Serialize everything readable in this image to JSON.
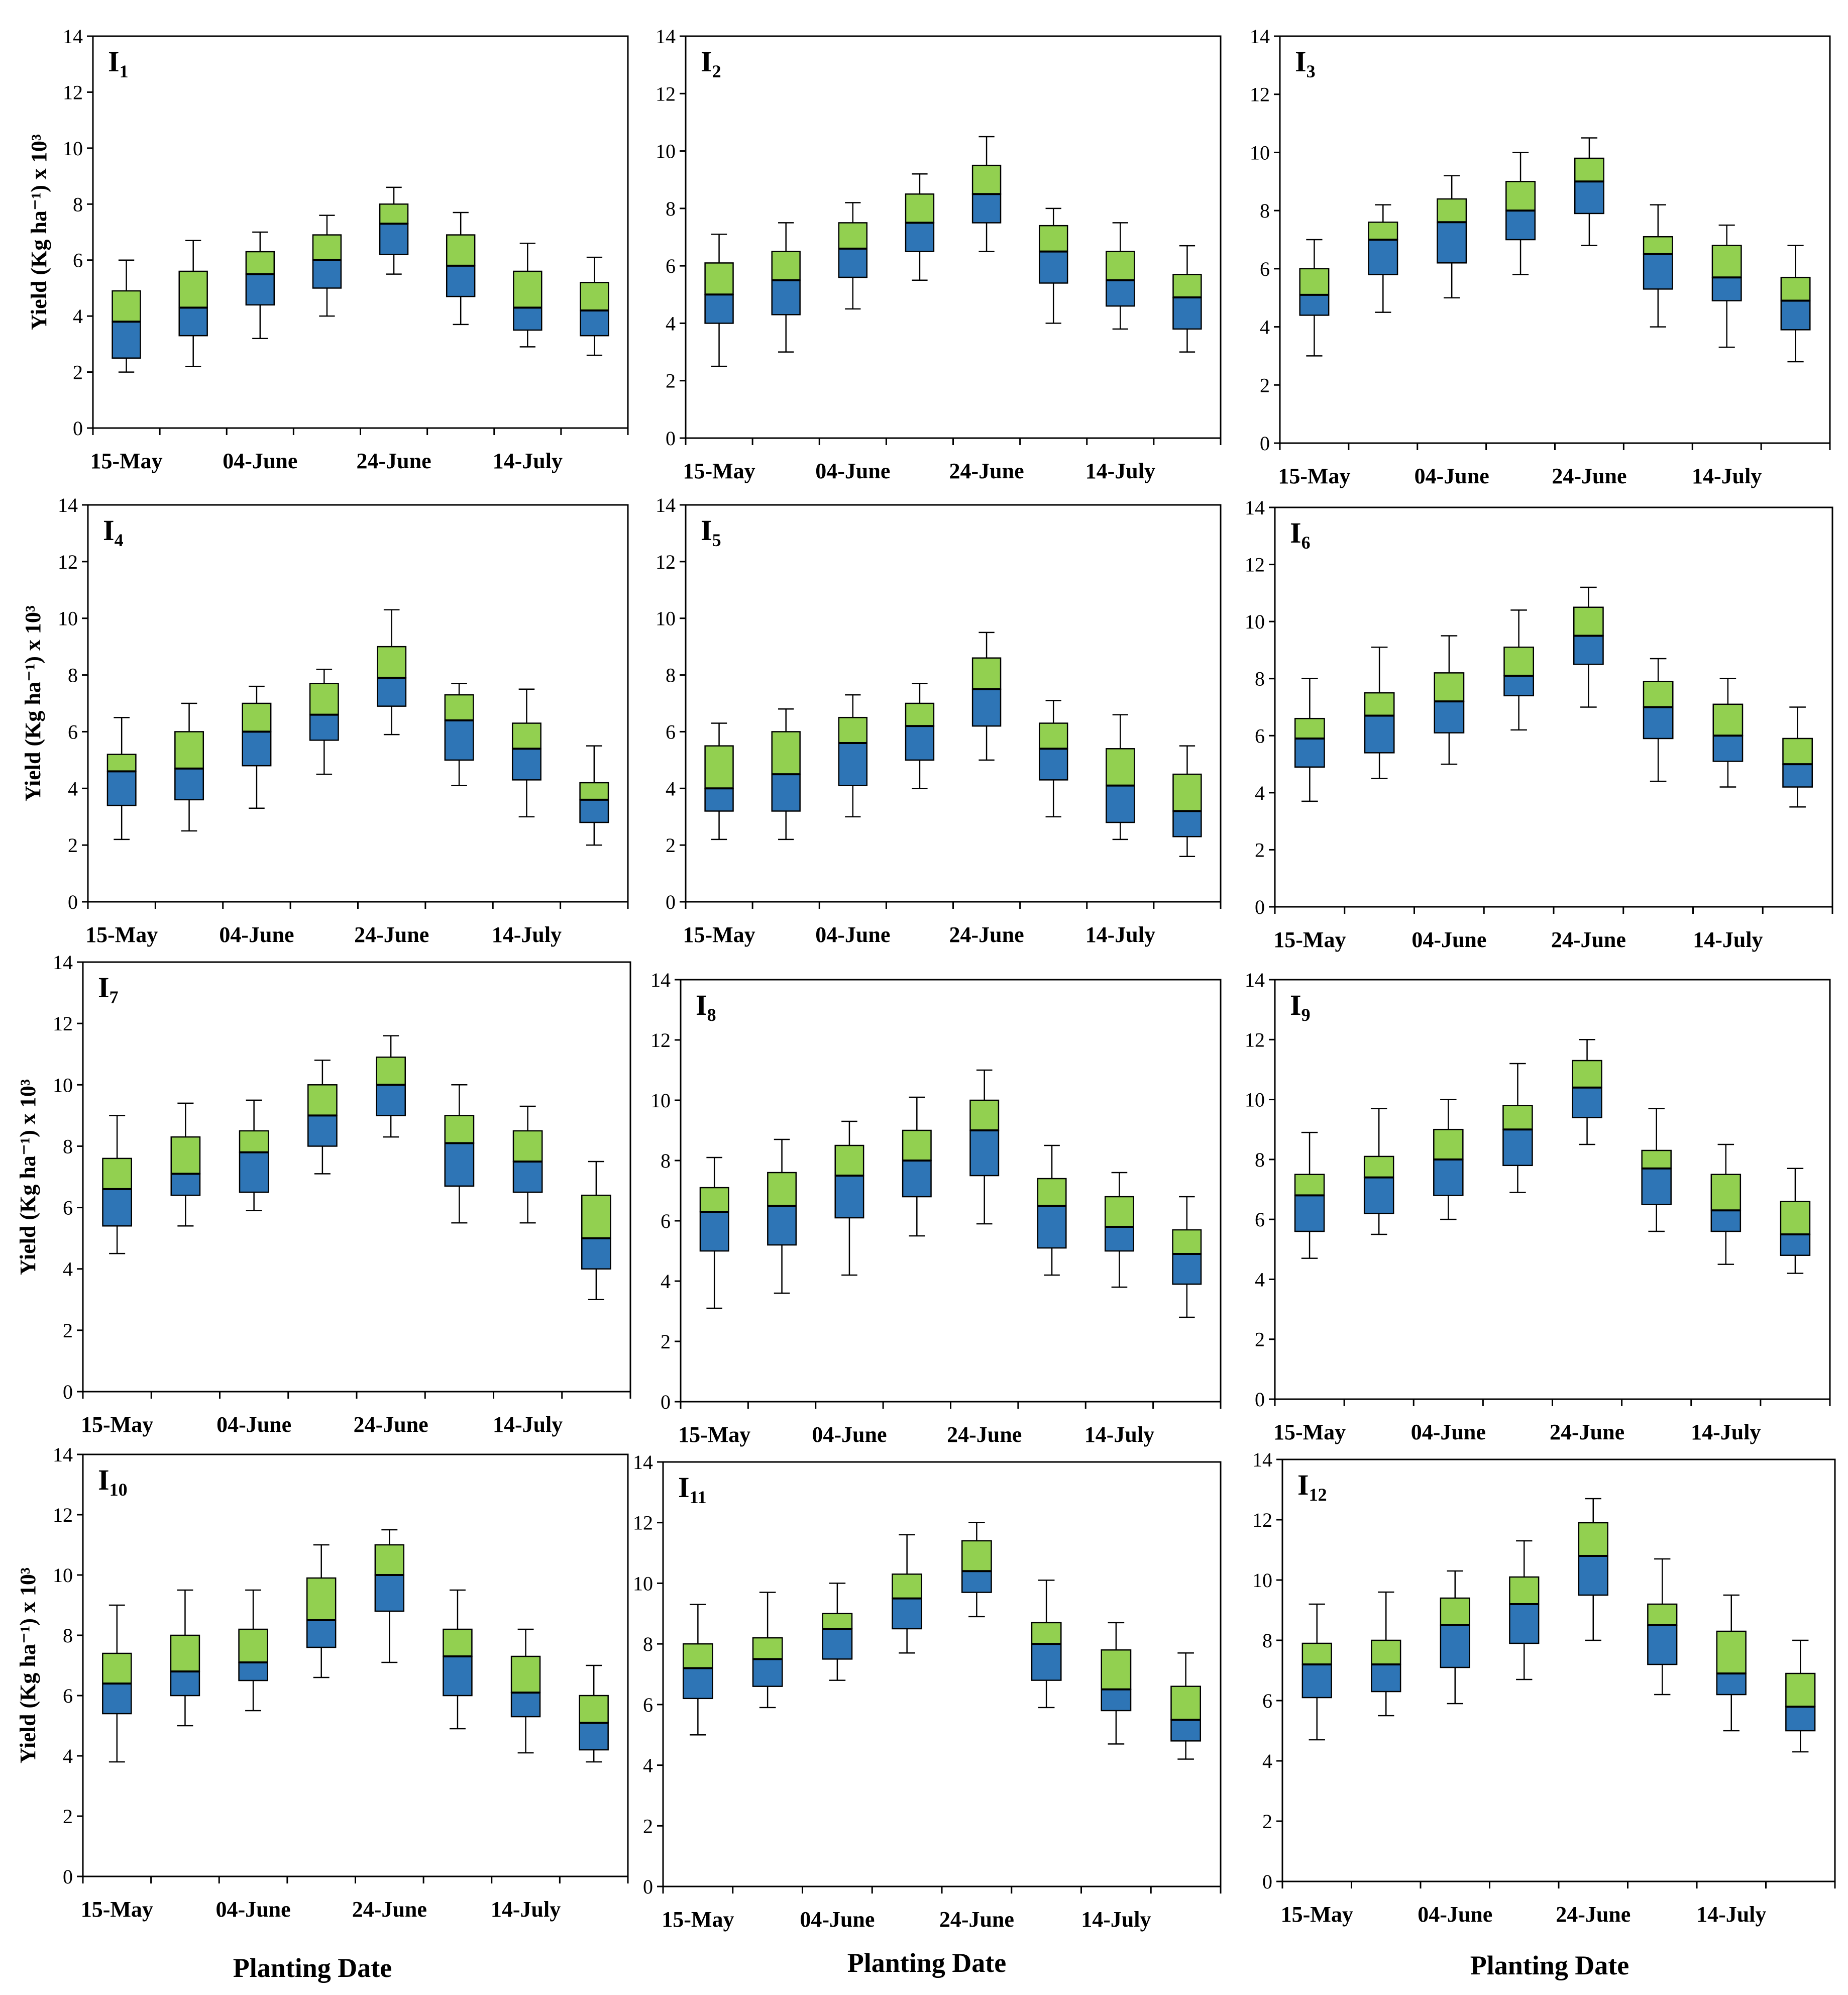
{
  "figure": {
    "y_axis_title": "Yield (Kg ha⁻¹) x 10³",
    "x_axis_title": "Planting Date",
    "colors": {
      "upper_box": "#92d050",
      "lower_box": "#2e75b6",
      "outline": "#000000",
      "whisker": "#000000"
    }
  },
  "chart_data": [
    {
      "type": "box",
      "title": "I",
      "subscript": "1",
      "categories": [
        "15-May",
        "",
        "04-June",
        "",
        "24-June",
        "",
        "14-July",
        ""
      ],
      "ylim": [
        0,
        14
      ],
      "yticks": [
        0,
        2,
        4,
        6,
        8,
        10,
        12,
        14
      ],
      "boxes": [
        {
          "min": 2.0,
          "q1": 2.5,
          "median": 3.8,
          "q3": 4.9,
          "max": 6.0
        },
        {
          "min": 2.2,
          "q1": 3.3,
          "median": 4.3,
          "q3": 5.6,
          "max": 6.7
        },
        {
          "min": 3.2,
          "q1": 4.4,
          "median": 5.5,
          "q3": 6.3,
          "max": 7.0
        },
        {
          "min": 4.0,
          "q1": 5.0,
          "median": 6.0,
          "q3": 6.9,
          "max": 7.6
        },
        {
          "min": 5.5,
          "q1": 6.2,
          "median": 7.3,
          "q3": 8.0,
          "max": 8.6
        },
        {
          "min": 3.7,
          "q1": 4.7,
          "median": 5.8,
          "q3": 6.9,
          "max": 7.7
        },
        {
          "min": 2.9,
          "q1": 3.5,
          "median": 4.3,
          "q3": 5.6,
          "max": 6.6
        },
        {
          "min": 2.6,
          "q1": 3.3,
          "median": 4.2,
          "q3": 5.2,
          "max": 6.1
        }
      ]
    },
    {
      "type": "box",
      "title": "I",
      "subscript": "2",
      "categories": [
        "15-May",
        "",
        "04-June",
        "",
        "24-June",
        "",
        "14-July",
        ""
      ],
      "ylim": [
        0,
        14
      ],
      "yticks": [
        0,
        2,
        4,
        6,
        8,
        10,
        12,
        14
      ],
      "boxes": [
        {
          "min": 2.5,
          "q1": 4.0,
          "median": 5.0,
          "q3": 6.1,
          "max": 7.1
        },
        {
          "min": 3.0,
          "q1": 4.3,
          "median": 5.5,
          "q3": 6.5,
          "max": 7.5
        },
        {
          "min": 4.5,
          "q1": 5.6,
          "median": 6.6,
          "q3": 7.5,
          "max": 8.2
        },
        {
          "min": 5.5,
          "q1": 6.5,
          "median": 7.5,
          "q3": 8.5,
          "max": 9.2
        },
        {
          "min": 6.5,
          "q1": 7.5,
          "median": 8.5,
          "q3": 9.5,
          "max": 10.5
        },
        {
          "min": 4.0,
          "q1": 5.4,
          "median": 6.5,
          "q3": 7.4,
          "max": 8.0
        },
        {
          "min": 3.8,
          "q1": 4.6,
          "median": 5.5,
          "q3": 6.5,
          "max": 7.5
        },
        {
          "min": 3.0,
          "q1": 3.8,
          "median": 4.9,
          "q3": 5.7,
          "max": 6.7
        }
      ]
    },
    {
      "type": "box",
      "title": "I",
      "subscript": "3",
      "categories": [
        "15-May",
        "",
        "04-June",
        "",
        "24-June",
        "",
        "14-July",
        ""
      ],
      "ylim": [
        0,
        14
      ],
      "yticks": [
        0,
        2,
        4,
        6,
        8,
        10,
        12,
        14
      ],
      "boxes": [
        {
          "min": 3.0,
          "q1": 4.4,
          "median": 5.1,
          "q3": 6.0,
          "max": 7.0
        },
        {
          "min": 4.5,
          "q1": 5.8,
          "median": 7.0,
          "q3": 7.6,
          "max": 8.2
        },
        {
          "min": 5.0,
          "q1": 6.2,
          "median": 7.6,
          "q3": 8.4,
          "max": 9.2
        },
        {
          "min": 5.8,
          "q1": 7.0,
          "median": 8.0,
          "q3": 9.0,
          "max": 10.0
        },
        {
          "min": 6.8,
          "q1": 7.9,
          "median": 9.0,
          "q3": 9.8,
          "max": 10.5
        },
        {
          "min": 4.0,
          "q1": 5.3,
          "median": 6.5,
          "q3": 7.1,
          "max": 8.2
        },
        {
          "min": 3.3,
          "q1": 4.9,
          "median": 5.7,
          "q3": 6.8,
          "max": 7.5
        },
        {
          "min": 2.8,
          "q1": 3.9,
          "median": 4.9,
          "q3": 5.7,
          "max": 6.8
        }
      ]
    },
    {
      "type": "box",
      "title": "I",
      "subscript": "4",
      "categories": [
        "15-May",
        "",
        "04-June",
        "",
        "24-June",
        "",
        "14-July",
        ""
      ],
      "ylim": [
        0,
        14
      ],
      "yticks": [
        0,
        2,
        4,
        6,
        8,
        10,
        12,
        14
      ],
      "boxes": [
        {
          "min": 2.2,
          "q1": 3.4,
          "median": 4.6,
          "q3": 5.2,
          "max": 6.5
        },
        {
          "min": 2.5,
          "q1": 3.6,
          "median": 4.7,
          "q3": 6.0,
          "max": 7.0
        },
        {
          "min": 3.3,
          "q1": 4.8,
          "median": 6.0,
          "q3": 7.0,
          "max": 7.6
        },
        {
          "min": 4.5,
          "q1": 5.7,
          "median": 6.6,
          "q3": 7.7,
          "max": 8.2
        },
        {
          "min": 5.9,
          "q1": 6.9,
          "median": 7.9,
          "q3": 9.0,
          "max": 10.3
        },
        {
          "min": 4.1,
          "q1": 5.0,
          "median": 6.4,
          "q3": 7.3,
          "max": 7.7
        },
        {
          "min": 3.0,
          "q1": 4.3,
          "median": 5.4,
          "q3": 6.3,
          "max": 7.5
        },
        {
          "min": 2.0,
          "q1": 2.8,
          "median": 3.6,
          "q3": 4.2,
          "max": 5.5
        }
      ]
    },
    {
      "type": "box",
      "title": "I",
      "subscript": "5",
      "categories": [
        "15-May",
        "",
        "04-June",
        "",
        "24-June",
        "",
        "14-July",
        ""
      ],
      "ylim": [
        0,
        14
      ],
      "yticks": [
        0,
        2,
        4,
        6,
        8,
        10,
        12,
        14
      ],
      "boxes": [
        {
          "min": 2.2,
          "q1": 3.2,
          "median": 4.0,
          "q3": 5.5,
          "max": 6.3
        },
        {
          "min": 2.2,
          "q1": 3.2,
          "median": 4.5,
          "q3": 6.0,
          "max": 6.8
        },
        {
          "min": 3.0,
          "q1": 4.1,
          "median": 5.6,
          "q3": 6.5,
          "max": 7.3
        },
        {
          "min": 4.0,
          "q1": 5.0,
          "median": 6.2,
          "q3": 7.0,
          "max": 7.7
        },
        {
          "min": 5.0,
          "q1": 6.2,
          "median": 7.5,
          "q3": 8.6,
          "max": 9.5
        },
        {
          "min": 3.0,
          "q1": 4.3,
          "median": 5.4,
          "q3": 6.3,
          "max": 7.1
        },
        {
          "min": 2.2,
          "q1": 2.8,
          "median": 4.1,
          "q3": 5.4,
          "max": 6.6
        },
        {
          "min": 1.6,
          "q1": 2.3,
          "median": 3.2,
          "q3": 4.5,
          "max": 5.5
        }
      ]
    },
    {
      "type": "box",
      "title": "I",
      "subscript": "6",
      "categories": [
        "15-May",
        "",
        "04-June",
        "",
        "24-June",
        "",
        "14-July",
        ""
      ],
      "ylim": [
        0,
        14
      ],
      "yticks": [
        0,
        2,
        4,
        6,
        8,
        10,
        12,
        14
      ],
      "boxes": [
        {
          "min": 3.7,
          "q1": 4.9,
          "median": 5.9,
          "q3": 6.6,
          "max": 8.0
        },
        {
          "min": 4.5,
          "q1": 5.4,
          "median": 6.7,
          "q3": 7.5,
          "max": 9.1
        },
        {
          "min": 5.0,
          "q1": 6.1,
          "median": 7.2,
          "q3": 8.2,
          "max": 9.5
        },
        {
          "min": 6.2,
          "q1": 7.4,
          "median": 8.1,
          "q3": 9.1,
          "max": 10.4
        },
        {
          "min": 7.0,
          "q1": 8.5,
          "median": 9.5,
          "q3": 10.5,
          "max": 11.2
        },
        {
          "min": 4.4,
          "q1": 5.9,
          "median": 7.0,
          "q3": 7.9,
          "max": 8.7
        },
        {
          "min": 4.2,
          "q1": 5.1,
          "median": 6.0,
          "q3": 7.1,
          "max": 8.0
        },
        {
          "min": 3.5,
          "q1": 4.2,
          "median": 5.0,
          "q3": 5.9,
          "max": 7.0
        }
      ]
    },
    {
      "type": "box",
      "title": "I",
      "subscript": "7",
      "categories": [
        "15-May",
        "",
        "04-June",
        "",
        "24-June",
        "",
        "14-July",
        ""
      ],
      "ylim": [
        0,
        14
      ],
      "yticks": [
        0,
        2,
        4,
        6,
        8,
        10,
        12,
        14
      ],
      "boxes": [
        {
          "min": 4.5,
          "q1": 5.4,
          "median": 6.6,
          "q3": 7.6,
          "max": 9.0
        },
        {
          "min": 5.4,
          "q1": 6.4,
          "median": 7.1,
          "q3": 8.3,
          "max": 9.4
        },
        {
          "min": 5.9,
          "q1": 6.5,
          "median": 7.8,
          "q3": 8.5,
          "max": 9.5
        },
        {
          "min": 7.1,
          "q1": 8.0,
          "median": 9.0,
          "q3": 10.0,
          "max": 10.8
        },
        {
          "min": 8.3,
          "q1": 9.0,
          "median": 10.0,
          "q3": 10.9,
          "max": 11.6
        },
        {
          "min": 5.5,
          "q1": 6.7,
          "median": 8.1,
          "q3": 9.0,
          "max": 10.0
        },
        {
          "min": 5.5,
          "q1": 6.5,
          "median": 7.5,
          "q3": 8.5,
          "max": 9.3
        },
        {
          "min": 3.0,
          "q1": 4.0,
          "median": 5.0,
          "q3": 6.4,
          "max": 7.5
        }
      ]
    },
    {
      "type": "box",
      "title": "I",
      "subscript": "8",
      "categories": [
        "15-May",
        "",
        "04-June",
        "",
        "24-June",
        "",
        "14-July",
        ""
      ],
      "ylim": [
        0,
        14
      ],
      "yticks": [
        0,
        2,
        4,
        6,
        8,
        10,
        12,
        14
      ],
      "boxes": [
        {
          "min": 3.1,
          "q1": 5.0,
          "median": 6.3,
          "q3": 7.1,
          "max": 8.1
        },
        {
          "min": 3.6,
          "q1": 5.2,
          "median": 6.5,
          "q3": 7.6,
          "max": 8.7
        },
        {
          "min": 4.2,
          "q1": 6.1,
          "median": 7.5,
          "q3": 8.5,
          "max": 9.3
        },
        {
          "min": 5.5,
          "q1": 6.8,
          "median": 8.0,
          "q3": 9.0,
          "max": 10.1
        },
        {
          "min": 5.9,
          "q1": 7.5,
          "median": 9.0,
          "q3": 10.0,
          "max": 11.0
        },
        {
          "min": 4.2,
          "q1": 5.1,
          "median": 6.5,
          "q3": 7.4,
          "max": 8.5
        },
        {
          "min": 3.8,
          "q1": 5.0,
          "median": 5.8,
          "q3": 6.8,
          "max": 7.6
        },
        {
          "min": 2.8,
          "q1": 3.9,
          "median": 4.9,
          "q3": 5.7,
          "max": 6.8
        }
      ]
    },
    {
      "type": "box",
      "title": "I",
      "subscript": "9",
      "categories": [
        "15-May",
        "",
        "04-June",
        "",
        "24-June",
        "",
        "14-July",
        ""
      ],
      "ylim": [
        0,
        14
      ],
      "yticks": [
        0,
        2,
        4,
        6,
        8,
        10,
        12,
        14
      ],
      "boxes": [
        {
          "min": 4.7,
          "q1": 5.6,
          "median": 6.8,
          "q3": 7.5,
          "max": 8.9
        },
        {
          "min": 5.5,
          "q1": 6.2,
          "median": 7.4,
          "q3": 8.1,
          "max": 9.7
        },
        {
          "min": 6.0,
          "q1": 6.8,
          "median": 8.0,
          "q3": 9.0,
          "max": 10.0
        },
        {
          "min": 6.9,
          "q1": 7.8,
          "median": 9.0,
          "q3": 9.8,
          "max": 11.2
        },
        {
          "min": 8.5,
          "q1": 9.4,
          "median": 10.4,
          "q3": 11.3,
          "max": 12.0
        },
        {
          "min": 5.6,
          "q1": 6.5,
          "median": 7.7,
          "q3": 8.3,
          "max": 9.7
        },
        {
          "min": 4.5,
          "q1": 5.6,
          "median": 6.3,
          "q3": 7.5,
          "max": 8.5
        },
        {
          "min": 4.2,
          "q1": 4.8,
          "median": 5.5,
          "q3": 6.6,
          "max": 7.7
        }
      ]
    },
    {
      "type": "box",
      "title": "I",
      "subscript": "10",
      "categories": [
        "15-May",
        "",
        "04-June",
        "",
        "24-June",
        "",
        "14-July",
        ""
      ],
      "ylim": [
        0,
        14
      ],
      "yticks": [
        0,
        2,
        4,
        6,
        8,
        10,
        12,
        14
      ],
      "boxes": [
        {
          "min": 3.8,
          "q1": 5.4,
          "median": 6.4,
          "q3": 7.4,
          "max": 9.0
        },
        {
          "min": 5.0,
          "q1": 6.0,
          "median": 6.8,
          "q3": 8.0,
          "max": 9.5
        },
        {
          "min": 5.5,
          "q1": 6.5,
          "median": 7.1,
          "q3": 8.2,
          "max": 9.5
        },
        {
          "min": 6.6,
          "q1": 7.6,
          "median": 8.5,
          "q3": 9.9,
          "max": 11.0
        },
        {
          "min": 7.1,
          "q1": 8.8,
          "median": 10.0,
          "q3": 11.0,
          "max": 11.5
        },
        {
          "min": 4.9,
          "q1": 6.0,
          "median": 7.3,
          "q3": 8.2,
          "max": 9.5
        },
        {
          "min": 4.1,
          "q1": 5.3,
          "median": 6.1,
          "q3": 7.3,
          "max": 8.2
        },
        {
          "min": 3.8,
          "q1": 4.2,
          "median": 5.1,
          "q3": 6.0,
          "max": 7.0
        }
      ]
    },
    {
      "type": "box",
      "title": "I",
      "subscript": "11",
      "categories": [
        "15-May",
        "",
        "04-June",
        "",
        "24-June",
        "",
        "14-July",
        ""
      ],
      "ylim": [
        0,
        14
      ],
      "yticks": [
        0,
        2,
        4,
        6,
        8,
        10,
        12,
        14
      ],
      "boxes": [
        {
          "min": 5.0,
          "q1": 6.2,
          "median": 7.2,
          "q3": 8.0,
          "max": 9.3
        },
        {
          "min": 5.9,
          "q1": 6.6,
          "median": 7.5,
          "q3": 8.2,
          "max": 9.7
        },
        {
          "min": 6.8,
          "q1": 7.5,
          "median": 8.5,
          "q3": 9.0,
          "max": 10.0
        },
        {
          "min": 7.7,
          "q1": 8.5,
          "median": 9.5,
          "q3": 10.3,
          "max": 11.6
        },
        {
          "min": 8.9,
          "q1": 9.7,
          "median": 10.4,
          "q3": 11.4,
          "max": 12.0
        },
        {
          "min": 5.9,
          "q1": 6.8,
          "median": 8.0,
          "q3": 8.7,
          "max": 10.1
        },
        {
          "min": 4.7,
          "q1": 5.8,
          "median": 6.5,
          "q3": 7.8,
          "max": 8.7
        },
        {
          "min": 4.2,
          "q1": 4.8,
          "median": 5.5,
          "q3": 6.6,
          "max": 7.7
        }
      ]
    },
    {
      "type": "box",
      "title": "I",
      "subscript": "12",
      "categories": [
        "15-May",
        "",
        "04-June",
        "",
        "24-June",
        "",
        "14-July",
        ""
      ],
      "ylim": [
        0,
        14
      ],
      "yticks": [
        0,
        2,
        4,
        6,
        8,
        10,
        12,
        14
      ],
      "boxes": [
        {
          "min": 4.7,
          "q1": 6.1,
          "median": 7.2,
          "q3": 7.9,
          "max": 9.2
        },
        {
          "min": 5.5,
          "q1": 6.3,
          "median": 7.2,
          "q3": 8.0,
          "max": 9.6
        },
        {
          "min": 5.9,
          "q1": 7.1,
          "median": 8.5,
          "q3": 9.4,
          "max": 10.3
        },
        {
          "min": 6.7,
          "q1": 7.9,
          "median": 9.2,
          "q3": 10.1,
          "max": 11.3
        },
        {
          "min": 8.0,
          "q1": 9.5,
          "median": 10.8,
          "q3": 11.9,
          "max": 12.7
        },
        {
          "min": 6.2,
          "q1": 7.2,
          "median": 8.5,
          "q3": 9.2,
          "max": 10.7
        },
        {
          "min": 5.0,
          "q1": 6.2,
          "median": 6.9,
          "q3": 8.3,
          "max": 9.5
        },
        {
          "min": 4.3,
          "q1": 5.0,
          "median": 5.8,
          "q3": 6.9,
          "max": 8.0
        }
      ]
    }
  ]
}
